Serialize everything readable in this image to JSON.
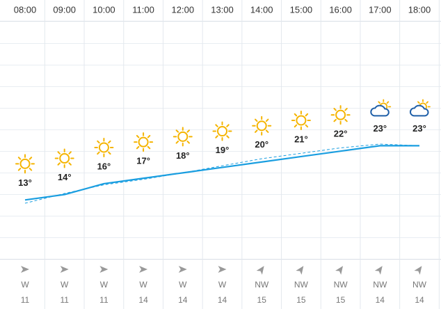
{
  "chart_data": {
    "type": "line",
    "categories": [
      "08:00",
      "09:00",
      "10:00",
      "11:00",
      "12:00",
      "13:00",
      "14:00",
      "15:00",
      "16:00",
      "17:00",
      "18:00"
    ],
    "series": [
      {
        "color": "#1a9ee0",
        "values": [
          13,
          14,
          16,
          17,
          18,
          19,
          20,
          21,
          22,
          23,
          23
        ],
        "value_labels": [
          "13°",
          "14°",
          "16°",
          "17°",
          "18°",
          "19°",
          "20°",
          "21°",
          "22°",
          "23°",
          "23°"
        ]
      },
      {
        "color": "#1a9ee0",
        "dashed": true,
        "values": [
          12.4,
          14.2,
          15.8,
          16.8,
          18,
          19.3,
          20.6,
          21.6,
          22.6,
          23.3,
          23
        ]
      }
    ],
    "ylim": [
      2.4,
      46
    ],
    "sky": [
      "clear",
      "clear",
      "clear",
      "clear",
      "clear",
      "clear",
      "clear",
      "clear",
      "clear",
      "partly-cloudy",
      "partly-cloudy"
    ],
    "wind_direction": [
      "W",
      "W",
      "W",
      "W",
      "W",
      "W",
      "NW",
      "NW",
      "NW",
      "NW",
      "NW"
    ],
    "wind_speed": [
      11,
      11,
      11,
      14,
      14,
      14,
      15,
      15,
      15,
      14,
      14
    ]
  }
}
